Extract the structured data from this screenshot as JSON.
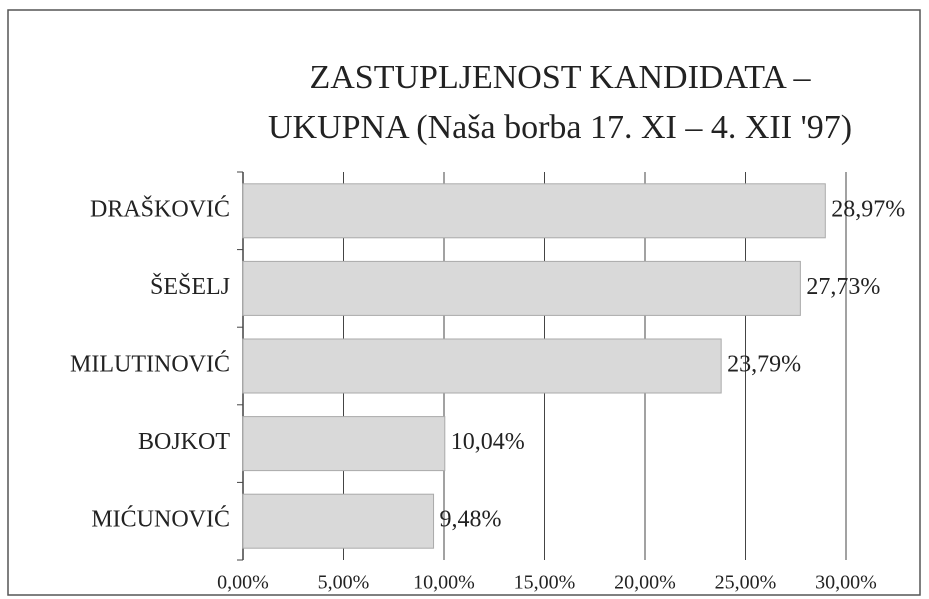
{
  "chart_data": {
    "type": "bar",
    "orientation": "horizontal",
    "title": [
      "ZASTUPLJENOST KANDIDATA –",
      "UKUPNA (Naša borba 17. XI – 4. XII '97)"
    ],
    "categories": [
      "DRAŠKOVIĆ",
      "ŠEŠELJ",
      "MILUTINOVIĆ",
      "BOJKOT",
      "MIĆUNOVIĆ"
    ],
    "values": [
      28.97,
      27.73,
      23.79,
      10.04,
      9.48
    ],
    "value_labels": [
      "28,97%",
      "27,73%",
      "23,79%",
      "10,04%",
      "9,48%"
    ],
    "color": "#d9d9d9",
    "xlim": [
      0,
      30
    ],
    "xticks": [
      {
        "value": 0,
        "label": "0,00%"
      },
      {
        "value": 5,
        "label": "5,00%"
      },
      {
        "value": 10,
        "label": "10,00%"
      },
      {
        "value": 15,
        "label": "15,00%"
      },
      {
        "value": 20,
        "label": "20,00%"
      },
      {
        "value": 25,
        "label": "25,00%"
      },
      {
        "value": 30,
        "label": "30,00%"
      }
    ],
    "grid": true
  }
}
